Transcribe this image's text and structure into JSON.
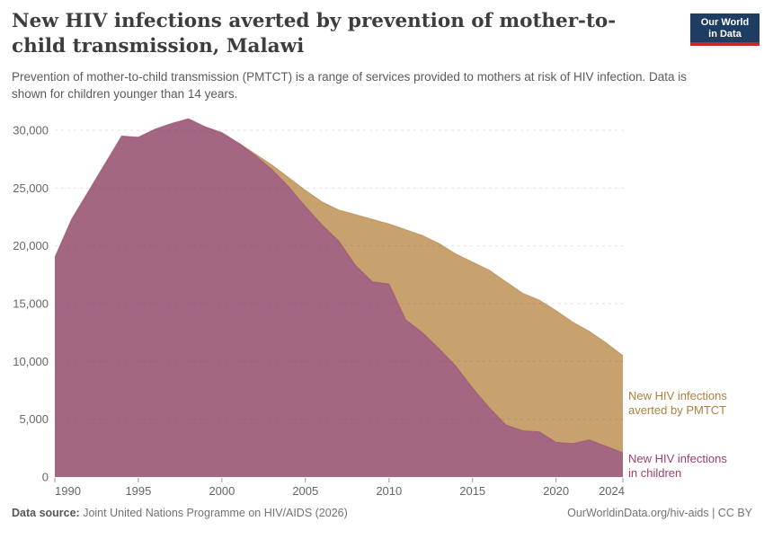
{
  "header": {
    "title": "New HIV infections averted by prevention of mother-to-child transmission, Malawi",
    "subtitle": "Prevention of mother-to-child transmission (PMTCT) is a range of services provided to mothers at risk of HIV infection. Data is shown for children younger than 14 years."
  },
  "logo": {
    "line1": "Our World",
    "line2": "in Data",
    "bg_color": "#1d3d63",
    "bar_color": "#bf2e21"
  },
  "chart_data": {
    "type": "area",
    "stacked": true,
    "title": "New HIV infections averted by prevention of mother-to-child transmission, Malawi",
    "x": [
      1990,
      1991,
      1992,
      1993,
      1994,
      1995,
      1996,
      1997,
      1998,
      1999,
      2000,
      2001,
      2002,
      2003,
      2004,
      2005,
      2006,
      2007,
      2008,
      2009,
      2010,
      2011,
      2012,
      2013,
      2014,
      2015,
      2016,
      2017,
      2018,
      2019,
      2020,
      2021,
      2022,
      2023,
      2024
    ],
    "series": [
      {
        "name": "New HIV infections in children",
        "color": "#a36782",
        "line_color": "#9b406c",
        "values": [
          19000,
          22300,
          24700,
          27100,
          29500,
          29400,
          30100,
          30600,
          31000,
          30300,
          29800,
          28900,
          27800,
          26600,
          25100,
          23400,
          21800,
          20400,
          18300,
          16900,
          16700,
          13600,
          12500,
          11100,
          9600,
          7700,
          6000,
          4500,
          4000,
          3900,
          3000,
          2900,
          3200,
          2650,
          2100
        ]
      },
      {
        "name": "New HIV infections averted by PMTCT",
        "color": "#c7a16e",
        "line_color": "#b07e3e",
        "values": [
          0,
          0,
          0,
          0,
          0,
          0,
          0,
          0,
          0,
          0,
          0,
          0,
          150,
          400,
          800,
          1400,
          2000,
          2700,
          4400,
          5400,
          5200,
          7800,
          8400,
          9100,
          9700,
          10900,
          11900,
          12400,
          11900,
          11400,
          11400,
          10500,
          9400,
          8950,
          8400
        ]
      }
    ],
    "xlim": [
      1990,
      2024
    ],
    "ylim": [
      0,
      30000
    ],
    "yticks": [
      0,
      5000,
      10000,
      15000,
      20000,
      25000,
      30000
    ],
    "xticks": [
      1990,
      1995,
      2000,
      2005,
      2010,
      2015,
      2020,
      2024
    ],
    "grid": "horizontal-dashed",
    "legend_position": "inline-right"
  },
  "annotations": {
    "averted_label": {
      "line1": "New HIV infections",
      "line2": "averted by PMTCT",
      "color": "#b07e3e"
    },
    "children_label": {
      "line1": "New HIV infections",
      "line2": "in children",
      "color": "#9b406c"
    }
  },
  "footer": {
    "source_label": "Data source:",
    "source_text": " Joint United Nations Programme on HIV/AIDS (2026)",
    "right_text": "OurWorldinData.org/hiv-aids | CC BY"
  }
}
